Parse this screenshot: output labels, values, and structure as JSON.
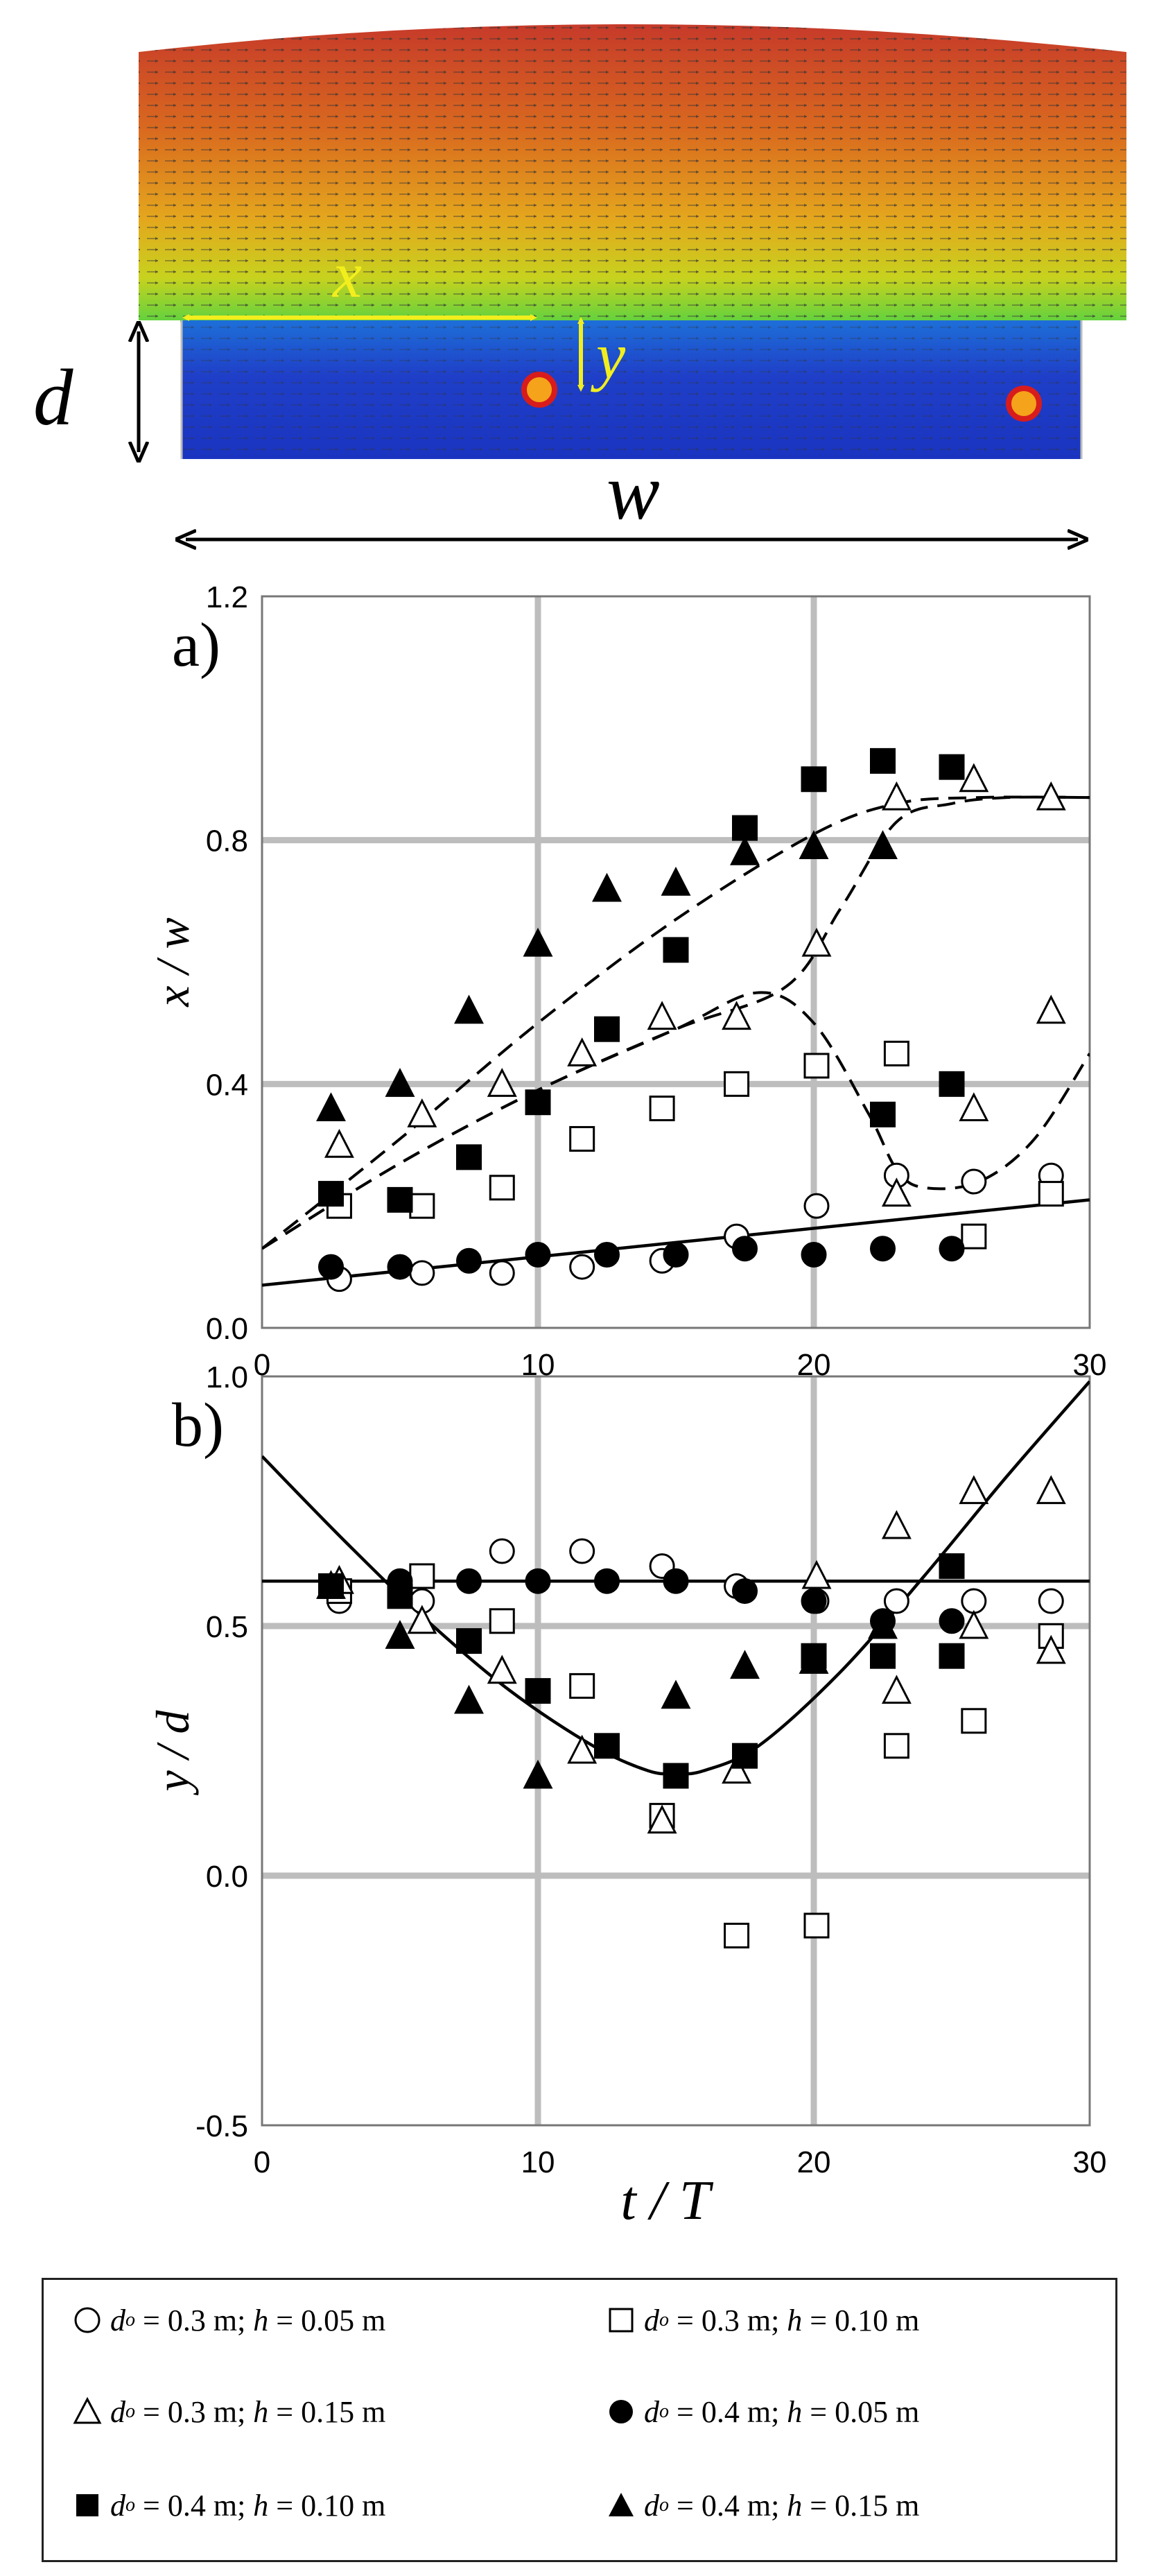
{
  "schematic": {
    "labels": {
      "d": "d",
      "w": "w",
      "x": "x",
      "y": "y"
    },
    "colors": {
      "flow_top": "#c8452a",
      "flow_mid": "#e7c020",
      "flow_band": "#7ad63a",
      "cavity": "#1c3ec8",
      "arrow": "#f2ee1e",
      "particle": "#d81c1c"
    }
  },
  "xlabel": "t / T",
  "legend": [
    {
      "marker": "circle-open",
      "d_o": "0.3 m",
      "h": "0.05 m"
    },
    {
      "marker": "square-open",
      "d_o": "0.3 m",
      "h": "0.10 m"
    },
    {
      "marker": "triangle-open",
      "d_o": "0.3 m",
      "h": "0.15 m"
    },
    {
      "marker": "circle-filled",
      "d_o": "0.4 m",
      "h": "0.05 m"
    },
    {
      "marker": "square-filled",
      "d_o": "0.4 m",
      "h": "0.10 m"
    },
    {
      "marker": "triangle-filled",
      "d_o": "0.4 m",
      "h": "0.15 m"
    }
  ],
  "chart_data": [
    {
      "panel": "a)",
      "type": "scatter",
      "ylabel": "x / w",
      "xlim": [
        0,
        30
      ],
      "ylim": [
        0,
        1.2
      ],
      "xticks": [
        "0",
        "10",
        "20",
        "30"
      ],
      "yticks": [
        "0.0",
        "0.4",
        "0.8",
        "1.2"
      ],
      "grid": true,
      "series": [
        {
          "marker": "circle-open",
          "points": [
            [
              2.8,
              0.08
            ],
            [
              5.8,
              0.09
            ],
            [
              8.7,
              0.09
            ],
            [
              11.6,
              0.1
            ],
            [
              14.5,
              0.11
            ],
            [
              17.2,
              0.15
            ],
            [
              20.1,
              0.2
            ],
            [
              23,
              0.25
            ],
            [
              25.8,
              0.24
            ],
            [
              28.6,
              0.25
            ]
          ]
        },
        {
          "marker": "square-open",
          "points": [
            [
              2.8,
              0.2
            ],
            [
              5.8,
              0.2
            ],
            [
              8.7,
              0.23
            ],
            [
              11.6,
              0.31
            ],
            [
              14.5,
              0.36
            ],
            [
              17.2,
              0.4
            ],
            [
              20.1,
              0.43
            ],
            [
              23,
              0.45
            ],
            [
              25.8,
              0.15
            ],
            [
              28.6,
              0.22
            ]
          ]
        },
        {
          "marker": "triangle-open",
          "points": [
            [
              2.8,
              0.3
            ],
            [
              5.8,
              0.35
            ],
            [
              8.7,
              0.4
            ],
            [
              11.6,
              0.45
            ],
            [
              14.5,
              0.51
            ],
            [
              17.2,
              0.51
            ],
            [
              20.1,
              0.63
            ],
            [
              23,
              0.87
            ],
            [
              25.8,
              0.9
            ],
            [
              28.6,
              0.87
            ],
            [
              28.6,
              0.52
            ],
            [
              25.8,
              0.36
            ],
            [
              23,
              0.22
            ]
          ]
        },
        {
          "marker": "circle-filled",
          "points": [
            [
              2.5,
              0.1
            ],
            [
              5,
              0.1
            ],
            [
              7.5,
              0.11
            ],
            [
              10,
              0.12
            ],
            [
              12.5,
              0.12
            ],
            [
              15,
              0.12
            ],
            [
              17.5,
              0.13
            ],
            [
              20,
              0.12
            ],
            [
              22.5,
              0.13
            ],
            [
              25,
              0.13
            ]
          ]
        },
        {
          "marker": "square-filled",
          "points": [
            [
              2.5,
              0.22
            ],
            [
              5,
              0.21
            ],
            [
              7.5,
              0.28
            ],
            [
              10,
              0.37
            ],
            [
              12.5,
              0.49
            ],
            [
              15,
              0.62
            ],
            [
              17.5,
              0.82
            ],
            [
              20,
              0.9
            ],
            [
              22.5,
              0.93
            ],
            [
              25,
              0.92
            ],
            [
              22.5,
              0.35
            ],
            [
              25,
              0.4
            ]
          ]
        },
        {
          "marker": "triangle-filled",
          "points": [
            [
              2.5,
              0.36
            ],
            [
              5,
              0.4
            ],
            [
              7.5,
              0.52
            ],
            [
              10,
              0.63
            ],
            [
              12.5,
              0.72
            ],
            [
              15,
              0.73
            ],
            [
              17.5,
              0.78
            ],
            [
              20,
              0.79
            ],
            [
              22.5,
              0.79
            ]
          ]
        }
      ],
      "curves": [
        {
          "style": "solid",
          "points": [
            [
              0,
              0.07
            ],
            [
              30,
              0.21
            ]
          ]
        },
        {
          "style": "dashed",
          "points": [
            [
              0,
              0.13
            ],
            [
              5,
              0.31
            ],
            [
              10,
              0.5
            ],
            [
              15,
              0.67
            ],
            [
              20,
              0.81
            ],
            [
              23,
              0.86
            ],
            [
              26,
              0.87
            ],
            [
              30,
              0.87
            ]
          ]
        },
        {
          "style": "dashed",
          "points": [
            [
              0,
              0.13
            ],
            [
              5,
              0.27
            ],
            [
              10,
              0.39
            ],
            [
              15,
              0.49
            ],
            [
              19,
              0.56
            ],
            [
              21,
              0.69
            ],
            [
              23,
              0.83
            ],
            [
              25,
              0.86
            ],
            [
              27,
              0.87
            ],
            [
              30,
              0.87
            ]
          ]
        },
        {
          "style": "dashed",
          "points": [
            [
              0,
              0.13
            ],
            [
              5,
              0.27
            ],
            [
              10,
              0.39
            ],
            [
              15,
              0.49
            ],
            [
              18,
              0.55
            ],
            [
              20,
              0.5
            ],
            [
              22,
              0.35
            ],
            [
              23,
              0.26
            ],
            [
              24,
              0.23
            ],
            [
              26,
              0.24
            ],
            [
              28,
              0.31
            ],
            [
              30,
              0.45
            ]
          ]
        }
      ]
    },
    {
      "panel": "b)",
      "type": "scatter",
      "ylabel": "y / d",
      "xlim": [
        0,
        30
      ],
      "ylim": [
        -0.5,
        1.0
      ],
      "xticks": [
        "0",
        "10",
        "20",
        "30"
      ],
      "yticks": [
        "-0.5",
        "0.0",
        "0.5",
        "1.0"
      ],
      "grid": true,
      "series": [
        {
          "marker": "circle-open",
          "points": [
            [
              2.8,
              0.55
            ],
            [
              5.8,
              0.55
            ],
            [
              8.7,
              0.65
            ],
            [
              11.6,
              0.65
            ],
            [
              14.5,
              0.62
            ],
            [
              17.2,
              0.58
            ],
            [
              20.1,
              0.55
            ],
            [
              23,
              0.55
            ],
            [
              25.8,
              0.55
            ],
            [
              28.6,
              0.55
            ]
          ]
        },
        {
          "marker": "square-open",
          "points": [
            [
              2.8,
              0.57
            ],
            [
              5.8,
              0.6
            ],
            [
              8.7,
              0.51
            ],
            [
              11.6,
              0.38
            ],
            [
              14.5,
              0.12
            ],
            [
              17.2,
              -0.12
            ],
            [
              20.1,
              -0.1
            ],
            [
              23,
              0.26
            ],
            [
              25.8,
              0.31
            ],
            [
              28.6,
              0.48
            ]
          ]
        },
        {
          "marker": "triangle-open",
          "points": [
            [
              2.8,
              0.59
            ],
            [
              5.8,
              0.51
            ],
            [
              8.7,
              0.41
            ],
            [
              11.6,
              0.25
            ],
            [
              14.5,
              0.11
            ],
            [
              17.2,
              0.21
            ],
            [
              20.1,
              0.6
            ],
            [
              23,
              0.37
            ],
            [
              23,
              0.7
            ],
            [
              25.8,
              0.5
            ],
            [
              25.8,
              0.77
            ],
            [
              28.6,
              0.45
            ],
            [
              28.6,
              0.77
            ]
          ]
        },
        {
          "marker": "circle-filled",
          "points": [
            [
              2.5,
              0.58
            ],
            [
              5,
              0.59
            ],
            [
              7.5,
              0.59
            ],
            [
              10,
              0.59
            ],
            [
              12.5,
              0.59
            ],
            [
              15,
              0.59
            ],
            [
              17.5,
              0.57
            ],
            [
              20,
              0.55
            ],
            [
              22.5,
              0.51
            ],
            [
              25,
              0.51
            ]
          ]
        },
        {
          "marker": "square-filled",
          "points": [
            [
              2.5,
              0.58
            ],
            [
              5,
              0.56
            ],
            [
              7.5,
              0.47
            ],
            [
              10,
              0.37
            ],
            [
              12.5,
              0.26
            ],
            [
              15,
              0.2
            ],
            [
              17.5,
              0.24
            ],
            [
              20,
              0.44
            ],
            [
              22.5,
              0.44
            ],
            [
              25,
              0.44
            ],
            [
              25,
              0.62
            ]
          ]
        },
        {
          "marker": "triangle-filled",
          "points": [
            [
              2.5,
              0.58
            ],
            [
              5,
              0.48
            ],
            [
              7.5,
              0.35
            ],
            [
              10,
              0.2
            ],
            [
              15,
              0.36
            ],
            [
              17.5,
              0.42
            ],
            [
              20,
              0.43
            ],
            [
              22.5,
              0.5
            ]
          ]
        }
      ],
      "curves": [
        {
          "style": "solid",
          "points": [
            [
              0,
              0.59
            ],
            [
              30,
              0.59
            ]
          ]
        },
        {
          "style": "solid",
          "points": [
            [
              0,
              0.84
            ],
            [
              3,
              0.67
            ],
            [
              6,
              0.51
            ],
            [
              9,
              0.37
            ],
            [
              12,
              0.26
            ],
            [
              14,
              0.21
            ],
            [
              15,
              0.205
            ],
            [
              16,
              0.21
            ],
            [
              18,
              0.26
            ],
            [
              21,
              0.41
            ],
            [
              24,
              0.6
            ],
            [
              27,
              0.8
            ],
            [
              30,
              0.99
            ]
          ]
        }
      ]
    }
  ]
}
